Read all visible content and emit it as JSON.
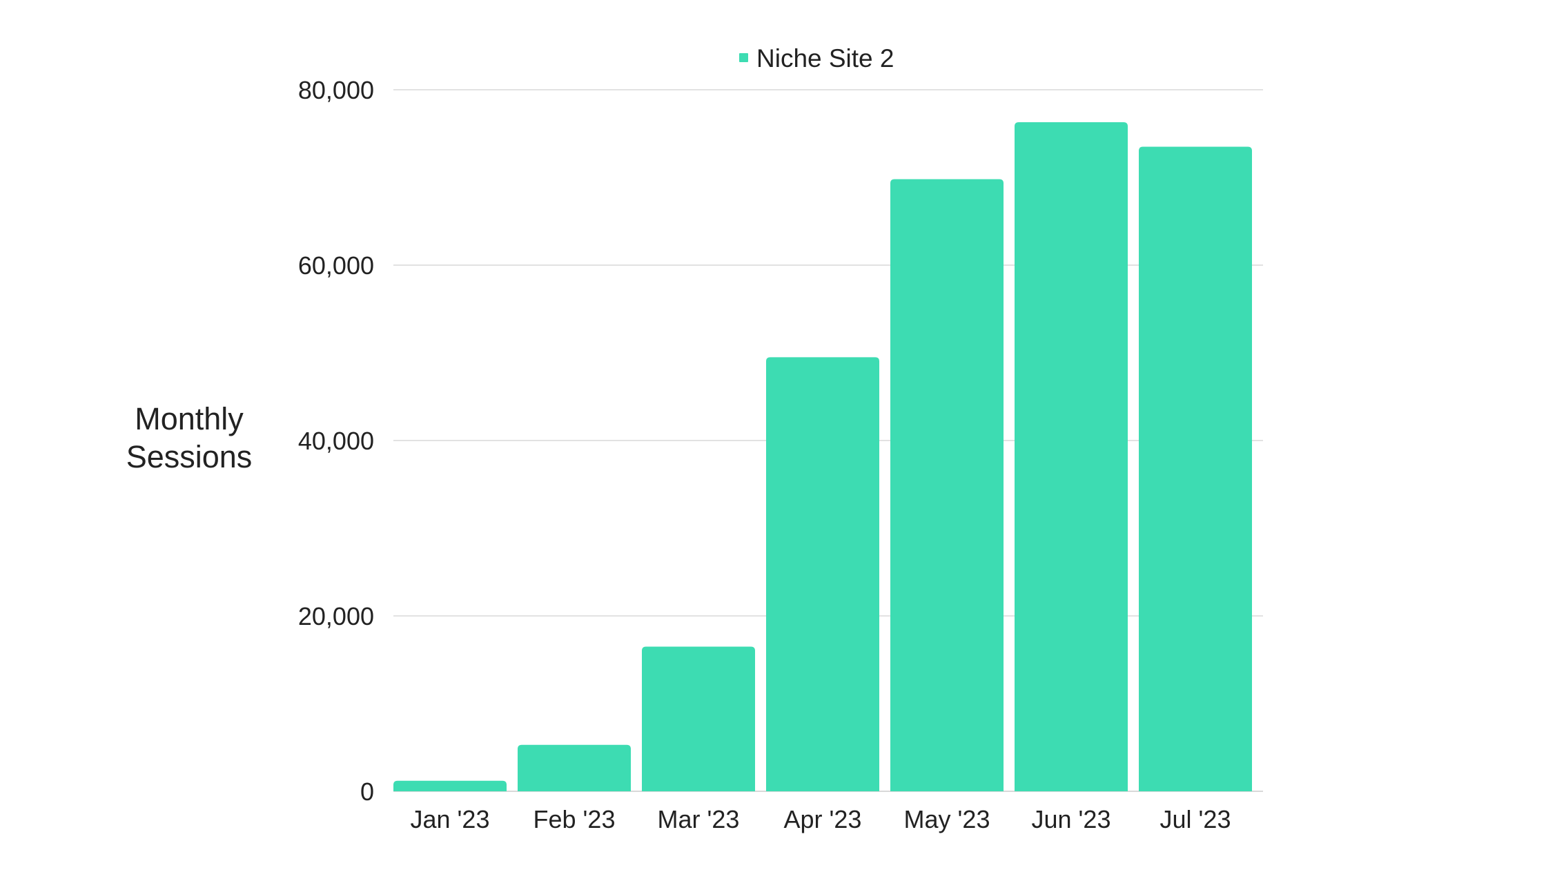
{
  "chart_data": {
    "type": "bar",
    "categories": [
      "Jan '23",
      "Feb '23",
      "Mar '23",
      "Apr '23",
      "May '23",
      "Jun '23",
      "Jul '23"
    ],
    "series": [
      {
        "name": "Niche Site 2",
        "values": [
          1200,
          5300,
          16500,
          49500,
          69800,
          76300,
          73500
        ],
        "color": "#3ddcb2"
      }
    ],
    "title": "",
    "xlabel": "",
    "ylabel": [
      "Monthly",
      "Sessions"
    ],
    "ylim": [
      0,
      80000
    ],
    "yticks": [
      0,
      20000,
      40000,
      60000,
      80000
    ],
    "ytick_labels": [
      "0",
      "20,000",
      "40,000",
      "60,000",
      "80,000"
    ],
    "grid": true,
    "legend_position": "top-center"
  }
}
